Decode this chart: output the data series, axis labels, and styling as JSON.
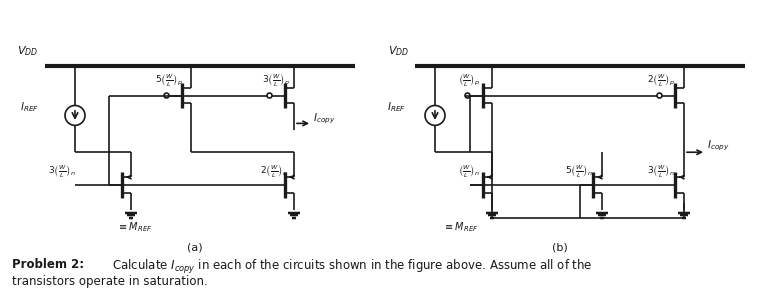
{
  "bg_color": "#ffffff",
  "text_color": "#000000",
  "line_color": "#1a1a1a",
  "fig_width": 7.82,
  "fig_height": 2.91,
  "problem_text_bold": "Problem 2:",
  "problem_text_normal": " Calculate I",
  "problem_text_sub": "copy",
  "problem_text_rest": " in each of the circuits shown in the figure above. Assume all of the\ntransistors operate in saturation.",
  "label_a": "(a)",
  "label_b": "(b)"
}
